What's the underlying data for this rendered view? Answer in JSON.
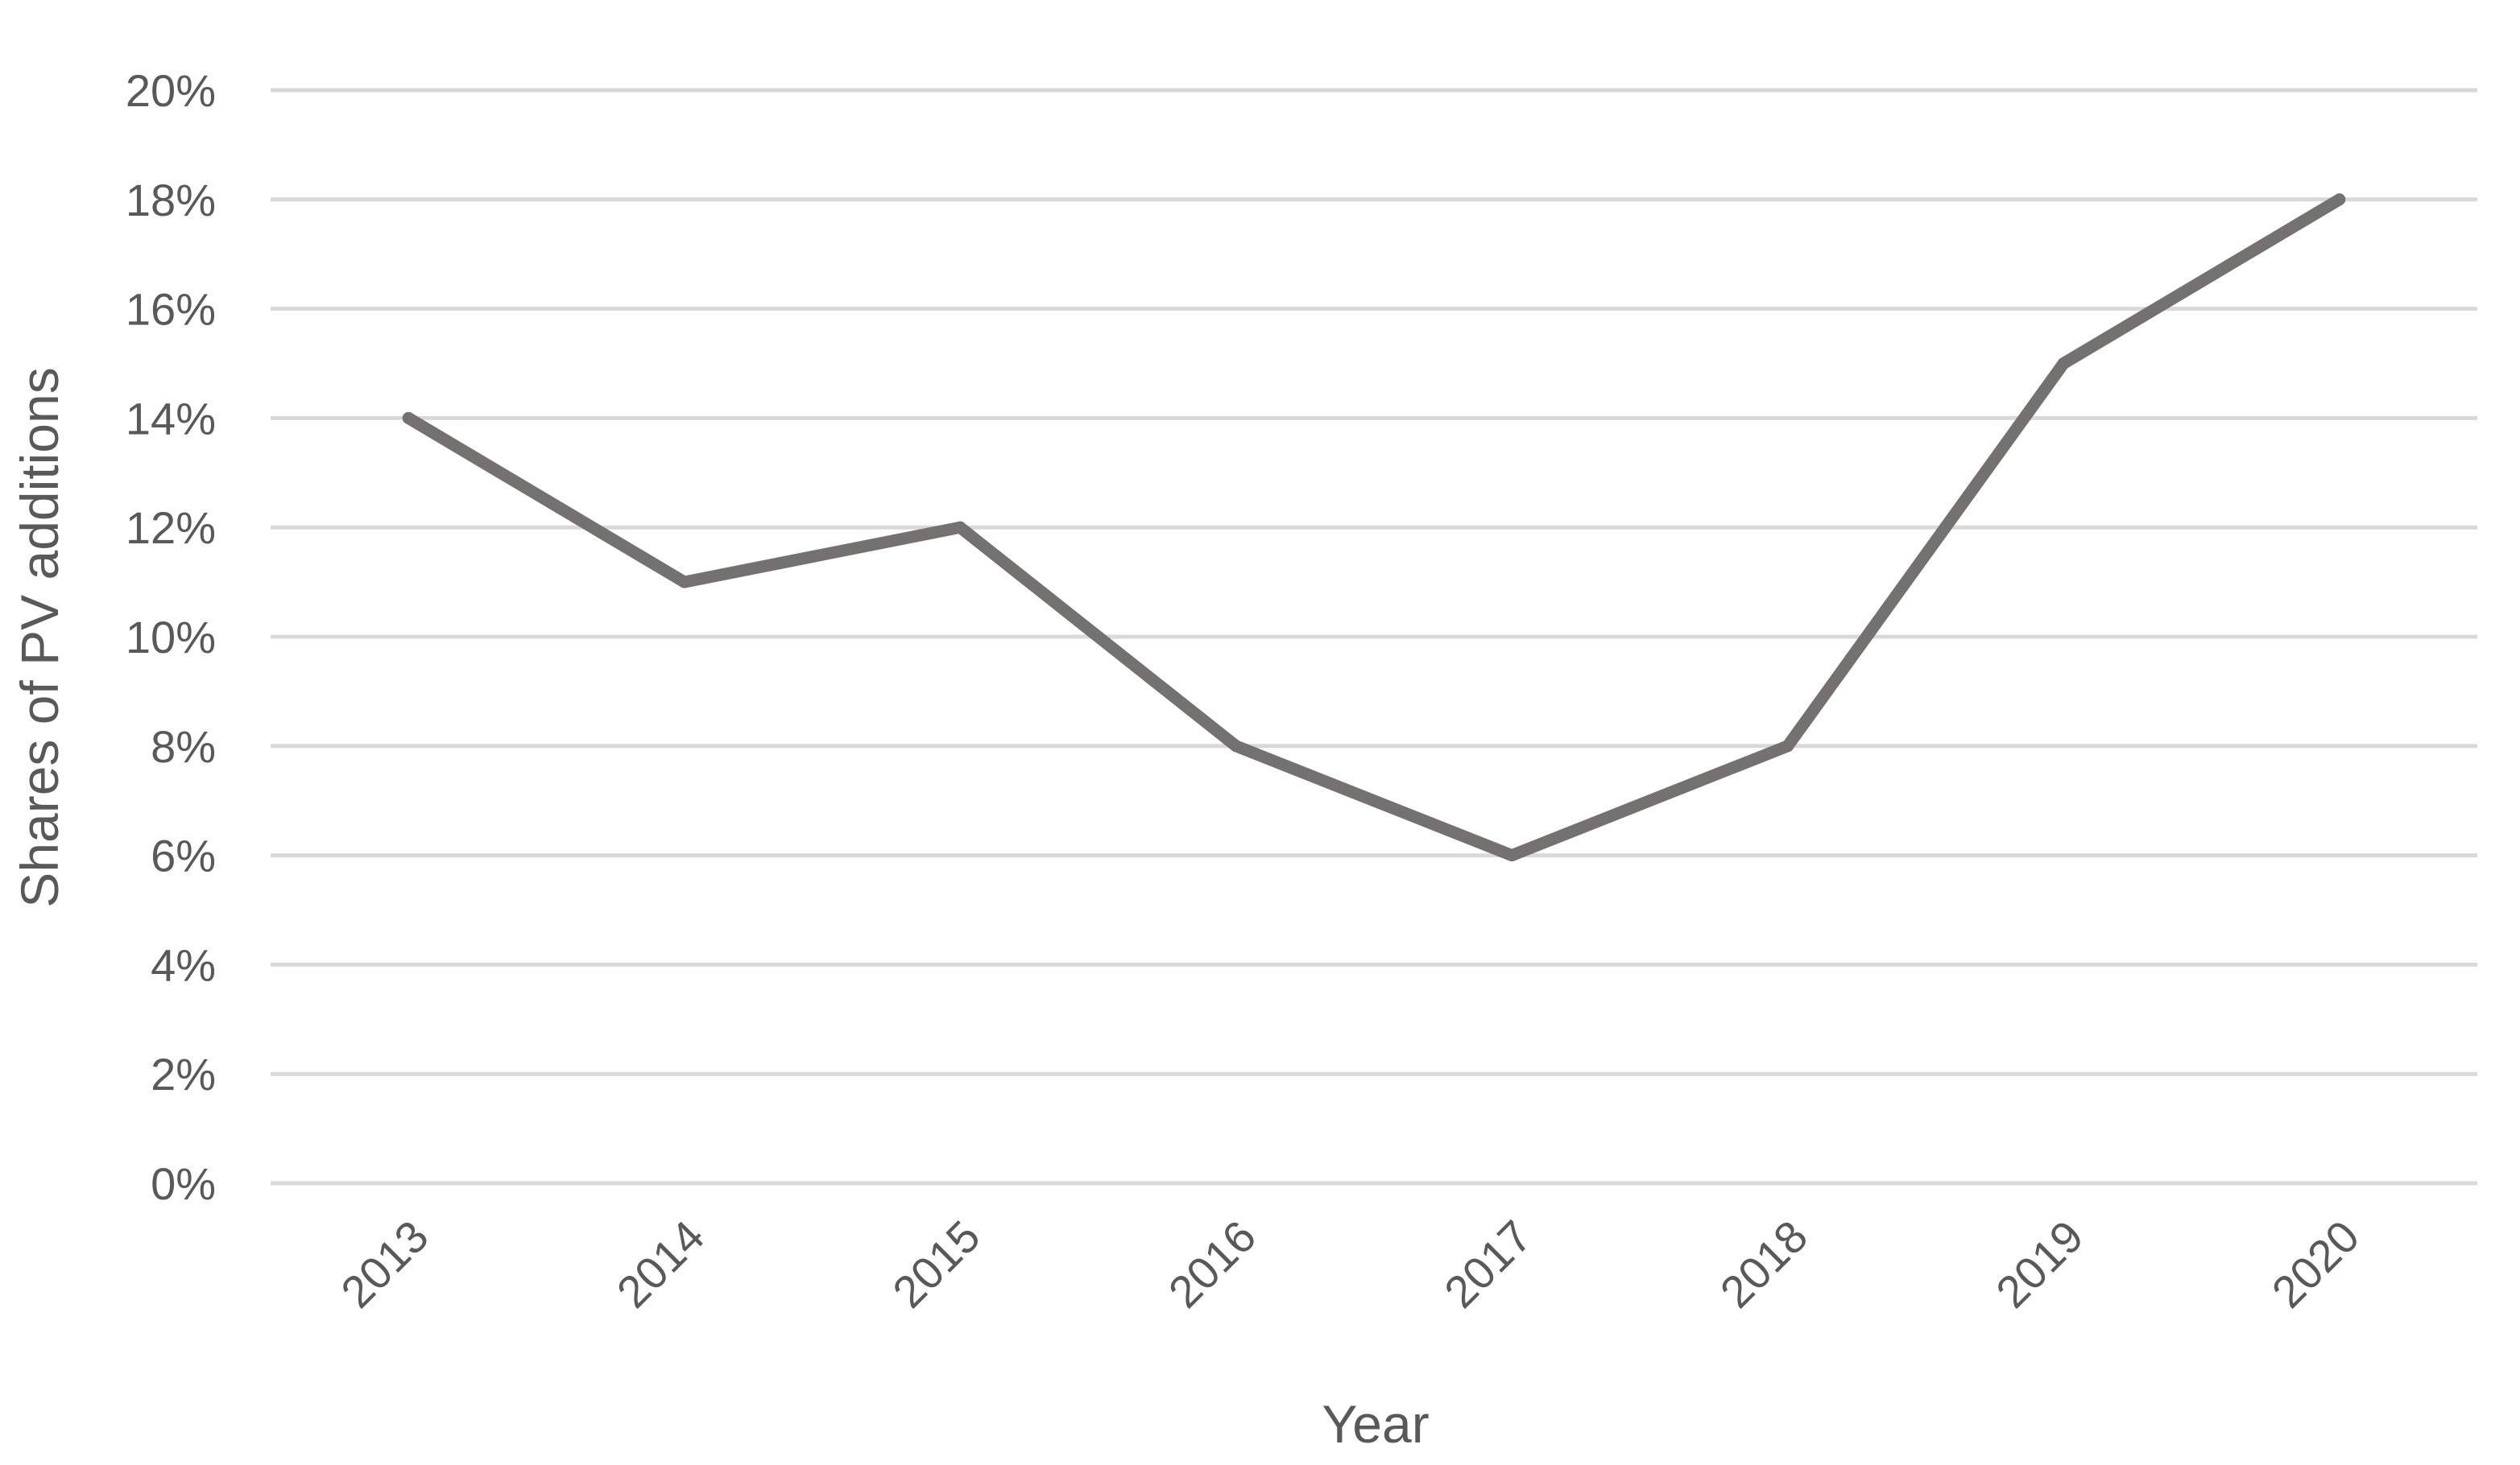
{
  "chart_data": {
    "type": "line",
    "title": "",
    "xlabel": "Year",
    "ylabel": "Shares of PV additions",
    "x": [
      "2013",
      "2014",
      "2015",
      "2016",
      "2017",
      "2018",
      "2019",
      "2020"
    ],
    "series": [
      {
        "values": [
          14,
          11,
          12,
          8,
          6,
          8,
          15,
          18
        ],
        "color": "#767171"
      }
    ],
    "ylim": [
      0,
      20
    ],
    "y_ticks": [
      "0%",
      "2%",
      "4%",
      "6%",
      "8%",
      "10%",
      "12%",
      "14%",
      "16%",
      "18%",
      "20%"
    ],
    "grid": true,
    "legend": "none",
    "colors": {
      "gridline": "#d9d9d9",
      "text": "#595959"
    }
  }
}
